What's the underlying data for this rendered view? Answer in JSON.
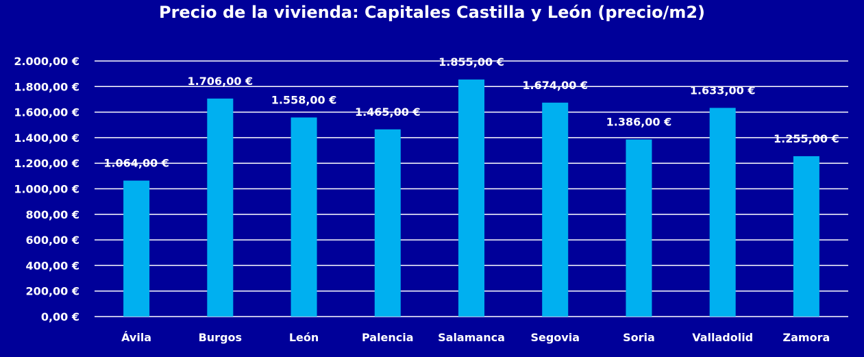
{
  "chart_data": {
    "type": "bar",
    "title": "Precio de la vivienda: Capitales Castilla y León (precio/m2)",
    "categories": [
      "Ávila",
      "Burgos",
      "León",
      "Palencia",
      "Salamanca",
      "Segovia",
      "Soria",
      "Valladolid",
      "Zamora"
    ],
    "values": [
      1064,
      1706,
      1558,
      1465,
      1855,
      1674,
      1386,
      1633,
      1255
    ],
    "data_labels": [
      "1.064,00 €",
      "1.706,00 €",
      "1.558,00 €",
      "1.465,00 €",
      "1.855,00 €",
      "1.674,00 €",
      "1.386,00 €",
      "1.633,00 €",
      "1.255,00 €"
    ],
    "ylim": [
      0,
      2000
    ],
    "y_ticks": [
      0,
      200,
      400,
      600,
      800,
      1000,
      1200,
      1400,
      1600,
      1800,
      2000
    ],
    "y_tick_labels": [
      "0,00 €",
      "200,00 €",
      "400,00 €",
      "600,00 €",
      "800,00 €",
      "1.000,00 €",
      "1.200,00 €",
      "1.400,00 €",
      "1.600,00 €",
      "1.800,00 €",
      "2.000,00 €"
    ],
    "grid": true,
    "legend": false,
    "colors": {
      "background": "#000099",
      "bar": "#00B0F0",
      "gridline": "#FFFFFF",
      "text": "#FFFFFF"
    }
  }
}
